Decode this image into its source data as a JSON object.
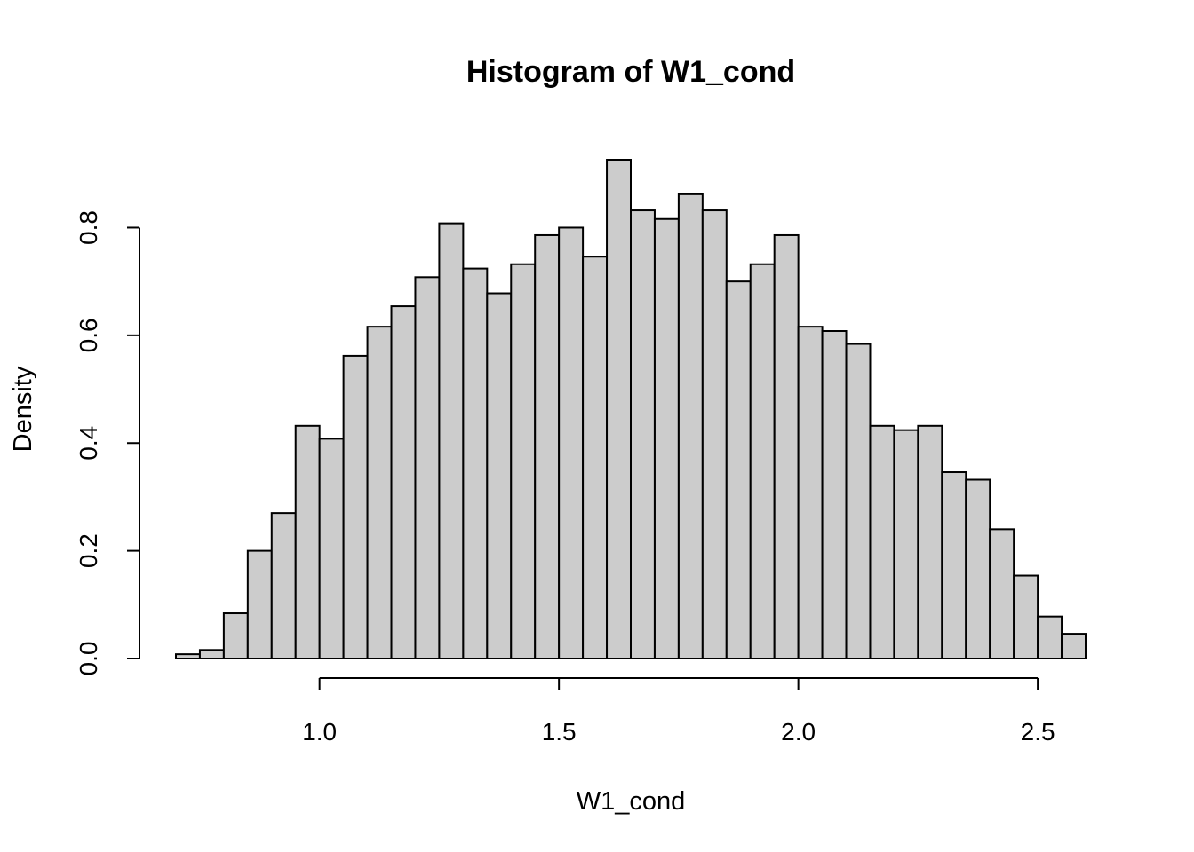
{
  "chart_data": {
    "type": "bar",
    "title": "Histogram of W1_cond",
    "xlabel": "W1_cond",
    "ylabel": "Density",
    "bin_width": 0.05,
    "x_start": 0.7,
    "values": [
      0.008,
      0.016,
      0.084,
      0.2,
      0.27,
      0.432,
      0.408,
      0.562,
      0.616,
      0.654,
      0.708,
      0.808,
      0.724,
      0.678,
      0.732,
      0.786,
      0.8,
      0.746,
      0.926,
      0.832,
      0.816,
      0.862,
      0.832,
      0.7,
      0.732,
      0.786,
      0.616,
      0.608,
      0.584,
      0.432,
      0.424,
      0.432,
      0.346,
      0.332,
      0.24,
      0.154,
      0.078,
      0.046
    ],
    "x_ticks": [
      1.0,
      1.5,
      2.0,
      2.5
    ],
    "x_tick_labels": [
      "1.0",
      "1.5",
      "2.0",
      "2.5"
    ],
    "y_ticks": [
      0.0,
      0.2,
      0.4,
      0.6,
      0.8
    ],
    "y_tick_labels": [
      "0.0",
      "0.2",
      "0.4",
      "0.6",
      "0.8"
    ],
    "xlim": [
      0.7,
      2.6
    ],
    "ylim": [
      0,
      0.926
    ],
    "colors": {
      "bar_fill": "#cccccc",
      "bar_stroke": "#000000"
    },
    "grid": false,
    "legend": "none"
  }
}
